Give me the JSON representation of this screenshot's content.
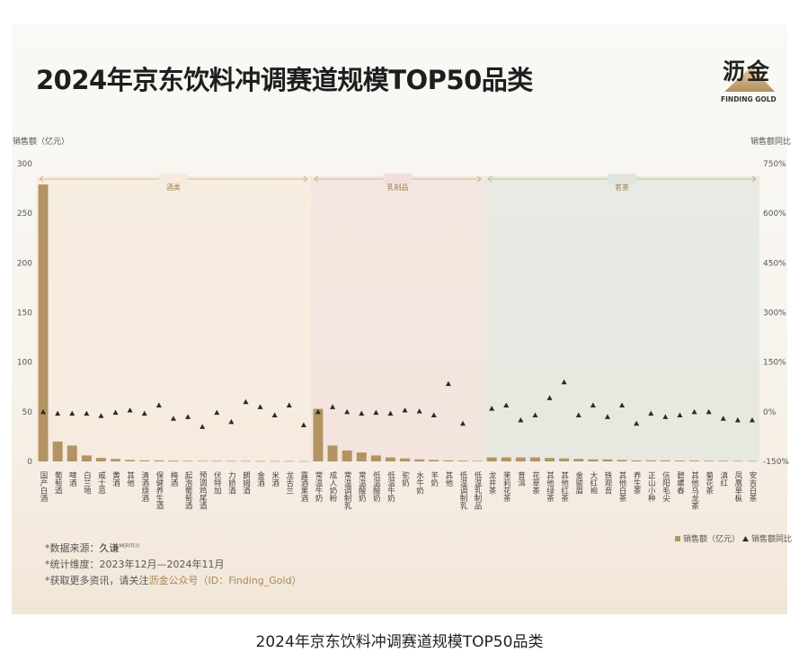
{
  "title": "2024年京东饮料冲调赛道规模TOP50品类",
  "caption": "2024年京东饮料冲调赛道规模TOP50品类",
  "logo": {
    "text": "沥金",
    "sub": "FINDING GOLD"
  },
  "notes": {
    "source_prefix": "*数据来源：",
    "source_brand": "久谦",
    "source_brand_sup": "MERITCO",
    "period": "*统计维度：2023年12月—2024年11月",
    "more_prefix": "*获取更多资讯，请关注",
    "more_accent": "沥金公众号（ID：Finding_Gold）"
  },
  "colors": {
    "bar": "#b39363",
    "marker": "#2a2a2a",
    "band_alcohol": "#f5eadb",
    "band_dairy": "#f1e0d9",
    "band_tea": "#e1e5dd",
    "band_line": "#c9a97f",
    "axis_text": "#555555"
  },
  "chart_data": {
    "type": "bar",
    "ylabel": "销售额（亿元）",
    "y2label": "销售额同比",
    "ylim": [
      0,
      300
    ],
    "y2lim": [
      -150,
      750
    ],
    "yticks": [
      "0",
      "50",
      "100",
      "150",
      "200",
      "250",
      "300"
    ],
    "y2ticks": [
      "-150%",
      "0%",
      "150%",
      "300%",
      "450%",
      "600%",
      "750%"
    ],
    "legend": {
      "bar": "销售额（亿元）",
      "marker": "销售额同比",
      "position": "bottom-right"
    },
    "groups": [
      {
        "name": "酒类",
        "start": 0,
        "end": 19
      },
      {
        "name": "乳制品",
        "start": 19,
        "end": 31
      },
      {
        "name": "茗茶",
        "start": 31,
        "end": 50
      }
    ],
    "categories": [
      "国产白酒",
      "葡萄酒",
      "啤酒",
      "白兰地",
      "威士忌",
      "黄酒",
      "其他",
      "清酒烧酒",
      "保健养生酒",
      "梅酒",
      "起泡葡萄酒",
      "预调鸡尾酒",
      "伏特加",
      "力娇酒",
      "朗姆酒",
      "金酒",
      "米酒",
      "龙舌兰",
      "露酒果酒",
      "常温牛奶",
      "成人奶粉",
      "常温调制乳",
      "常温酸奶",
      "低温酸奶",
      "低温牛奶",
      "驼奶",
      "水牛奶",
      "羊奶",
      "其他",
      "低温调制乳",
      "低温乳制品",
      "龙井茶",
      "茉莉花茶",
      "普洱",
      "花草茶",
      "其他绿茶",
      "其他红茶",
      "金骏眉",
      "大红袍",
      "铁观音",
      "其他白茶",
      "养生茶",
      "正山小种",
      "信阳毛尖",
      "碧螺春",
      "其他乌龙茶",
      "菊花茶",
      "滇红",
      "凤凰单枞",
      "安吉白茶"
    ],
    "series": [
      {
        "name": "销售额（亿元）",
        "type": "bar",
        "values": [
          279,
          20,
          16,
          6,
          3.5,
          2.5,
          1.5,
          1,
          1,
          0.8,
          0.6,
          0.5,
          0.5,
          0.4,
          0.4,
          0.3,
          0.3,
          0.3,
          0.3,
          53,
          16,
          11,
          9,
          6,
          4,
          3,
          2,
          1.5,
          1,
          0.8,
          0.5,
          4,
          4,
          4,
          4,
          3.5,
          3,
          2.5,
          2,
          2,
          1.5,
          1,
          1,
          1,
          0.8,
          0.8,
          0.6,
          0.6,
          0.5,
          0.5
        ]
      },
      {
        "name": "销售额同比",
        "type": "scatter",
        "values": [
          0,
          -5,
          -5,
          -5,
          -12,
          -2,
          5,
          -5,
          20,
          -20,
          -15,
          -45,
          -2,
          -30,
          30,
          15,
          -10,
          20,
          -40,
          0,
          15,
          0,
          -5,
          -2,
          -5,
          5,
          2,
          -10,
          85,
          -35,
          null,
          10,
          20,
          -25,
          -10,
          42,
          90,
          -10,
          20,
          -15,
          20,
          -35,
          -5,
          -15,
          -10,
          0,
          0,
          -20,
          -25,
          -25
        ]
      }
    ]
  }
}
